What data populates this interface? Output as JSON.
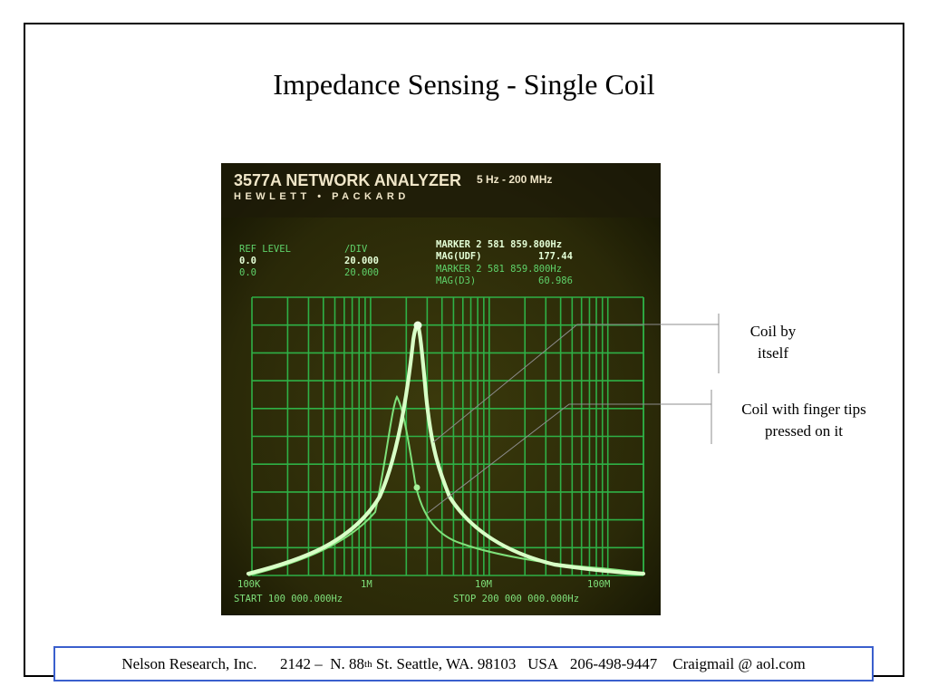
{
  "slide": {
    "title": "Impedance Sensing - Single Coil",
    "colors": {
      "frame": "#000000",
      "footer_border": "#3a5fcd",
      "screen_bg": "#2c2a08",
      "trace": "#caf7ae",
      "grid": "#2fb84a"
    }
  },
  "instrument": {
    "model": "3577A NETWORK ANALYZER",
    "range": "5 Hz - 200 MHz",
    "brand": "HEWLETT • PACKARD",
    "ref_level_label": "REF LEVEL",
    "div_label": "/DIV",
    "ref_1": "0.0",
    "div_1": "20.000",
    "ref_2": "0.0",
    "div_2": "20.000",
    "marker_1": "MARKER 2 581 859.800Hz",
    "mag_1_label": "MAG(UDF)",
    "mag_1_value": "177.44",
    "marker_2": "MARKER 2 581 859.800Hz",
    "mag_2_label": "MAG(D3)",
    "mag_2_value": "60.986",
    "x_labels": [
      "100K",
      "1M",
      "10M",
      "100M"
    ],
    "start": "START 100 000.000Hz",
    "stop": "STOP 200 000 000.000Hz"
  },
  "callouts": {
    "coil_alone_line1": "Coil by",
    "coil_alone_line2": "itself",
    "coil_finger_line1": "Coil with finger tips",
    "coil_finger_line2": "pressed on it"
  },
  "footer": {
    "company": "Nelson Research, Inc.",
    "street_prefix": "2142 –  N. 88",
    "street_sup": "th",
    "street_rest": " St. Seattle, WA. 98103",
    "country": "USA",
    "phone": "206-498-9447",
    "email": "Craigmail @ aol.com"
  }
}
